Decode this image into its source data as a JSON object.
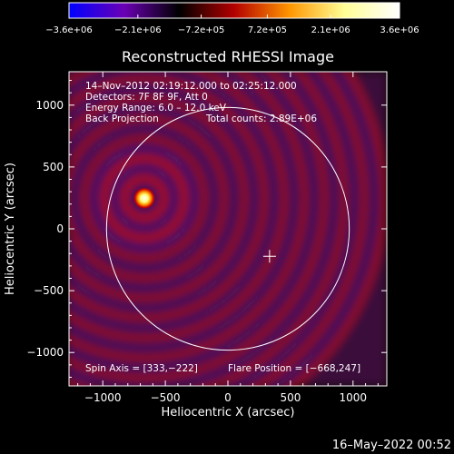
{
  "chart_data": {
    "type": "heatmap",
    "title": "Reconstructed RHESSI Image",
    "xlabel": "Heliocentric X (arcsec)",
    "ylabel": "Heliocentric Y (arcsec)",
    "xlim": [
      -1270,
      1270
    ],
    "ylim": [
      -1270,
      1270
    ],
    "xticks": [
      -1000,
      -500,
      0,
      500,
      1000
    ],
    "xtick_labels": [
      "−1000",
      "−500",
      "0",
      "500",
      "1000"
    ],
    "yticks": [
      1000,
      500,
      0,
      -500,
      -1000
    ],
    "ytick_labels": [
      "1000",
      "500",
      "0",
      "−500",
      "−1000"
    ],
    "colorbar": {
      "min": -3600000,
      "max": 3600000,
      "tick_values": [
        -3600000,
        -2100000,
        -720000,
        720000,
        2100000,
        3600000
      ],
      "tick_labels": [
        "−3.6e+06",
        "−2.1e+06",
        "−7.2e+05",
        "7.2e+05",
        "2.1e+06",
        "3.6e+06"
      ],
      "colormap": [
        "#0000ff",
        "#6a00b4",
        "#000000",
        "#b40000",
        "#ff9600",
        "#ffff96",
        "#ffffff"
      ]
    },
    "annotations": [
      "14–Nov–2012 02:19:12.000 to 02:25:12.000",
      "Detectors: 7F 8F 9F, Att 0",
      "Energy Range: 6.0 – 12.0 keV",
      "Back Projection"
    ],
    "total_counts": "Total counts: 2.89E+06",
    "spin_axis": "Spin Axis = [333,−222]",
    "flare_position": "Flare Position = [−668,247]",
    "flare_source": {
      "x": -668,
      "y": 247
    },
    "spin_axis_point": {
      "x": 333,
      "y": -222
    },
    "solar_limb": {
      "center": [
        0,
        0
      ],
      "radius": 970
    },
    "timestamp": "16–May–2022 00:52"
  }
}
